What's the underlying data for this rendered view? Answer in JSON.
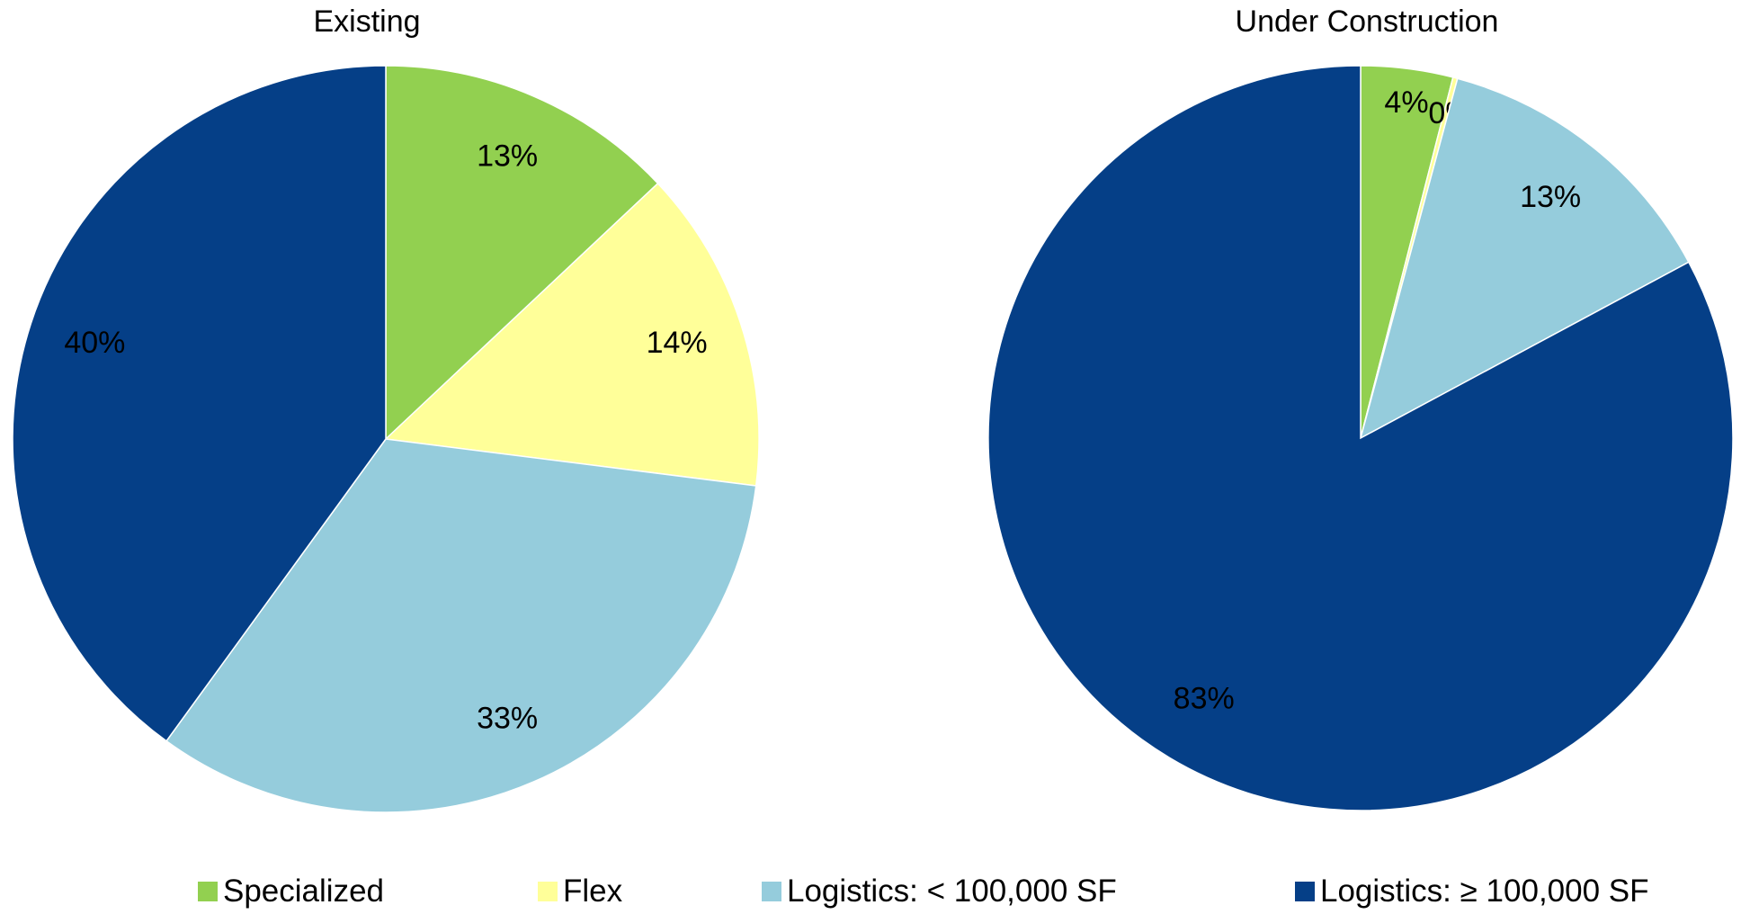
{
  "colors": {
    "specialized": "#92d050",
    "flex": "#ffff99",
    "logistics_small": "#95ccdc",
    "logistics_large": "#053f87"
  },
  "legend": [
    {
      "label": "Specialized",
      "color_key": "specialized"
    },
    {
      "label": "Flex",
      "color_key": "flex"
    },
    {
      "label": "Logistics:  < 100,000 SF",
      "color_key": "logistics_small"
    },
    {
      "label": "Logistics:  ≥ 100,000 SF",
      "color_key": "logistics_large"
    }
  ],
  "chart_data": [
    {
      "type": "pie",
      "title": "Existing",
      "legend_position": "bottom",
      "slices": [
        {
          "label": "Specialized",
          "value": 13,
          "display": "13%",
          "color_key": "specialized"
        },
        {
          "label": "Flex",
          "value": 14,
          "display": "14%",
          "color_key": "flex"
        },
        {
          "label": "Logistics:  < 100,000 SF",
          "value": 33,
          "display": "33%",
          "color_key": "logistics_small"
        },
        {
          "label": "Logistics:  ≥ 100,000 SF",
          "value": 40,
          "display": "40%",
          "color_key": "logistics_large"
        }
      ]
    },
    {
      "type": "pie",
      "title": "Under Construction",
      "legend_position": "bottom",
      "slices": [
        {
          "label": "Specialized",
          "value": 4,
          "display": "4%",
          "color_key": "specialized"
        },
        {
          "label": "Flex",
          "value": 0.2,
          "display": "0%",
          "color_key": "flex"
        },
        {
          "label": "Logistics:  < 100,000 SF",
          "value": 13,
          "display": "13%",
          "color_key": "logistics_small"
        },
        {
          "label": "Logistics:  ≥ 100,000 SF",
          "value": 83,
          "display": "83%",
          "color_key": "logistics_large"
        }
      ]
    }
  ]
}
